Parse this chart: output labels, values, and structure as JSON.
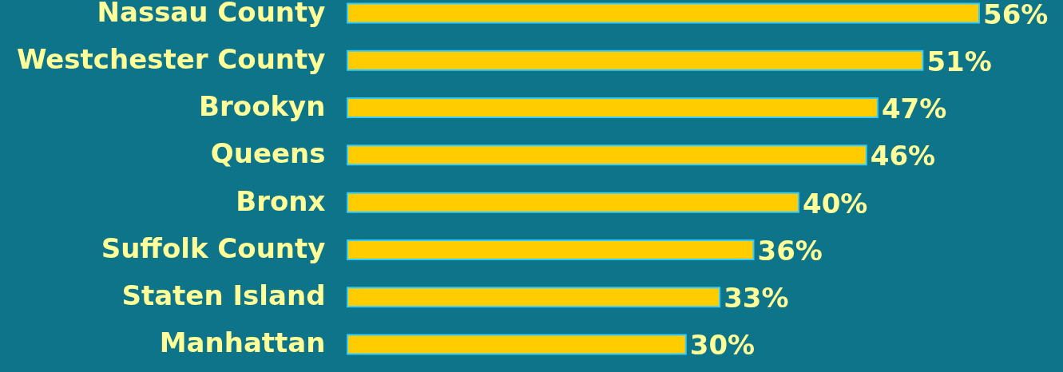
{
  "chart_data": {
    "type": "bar",
    "orientation": "horizontal",
    "categories": [
      "Nassau County",
      "Westchester County",
      "Brookyn",
      "Queens",
      "Bronx",
      "Suffolk County",
      "Staten Island",
      "Manhattan"
    ],
    "values": [
      56,
      51,
      47,
      46,
      40,
      36,
      33,
      30
    ],
    "value_labels": [
      "56%",
      "51%",
      "47%",
      "46%",
      "40%",
      "36%",
      "33%",
      "30%"
    ],
    "color": "#ffcc00",
    "tick_labels": "y"
  }
}
